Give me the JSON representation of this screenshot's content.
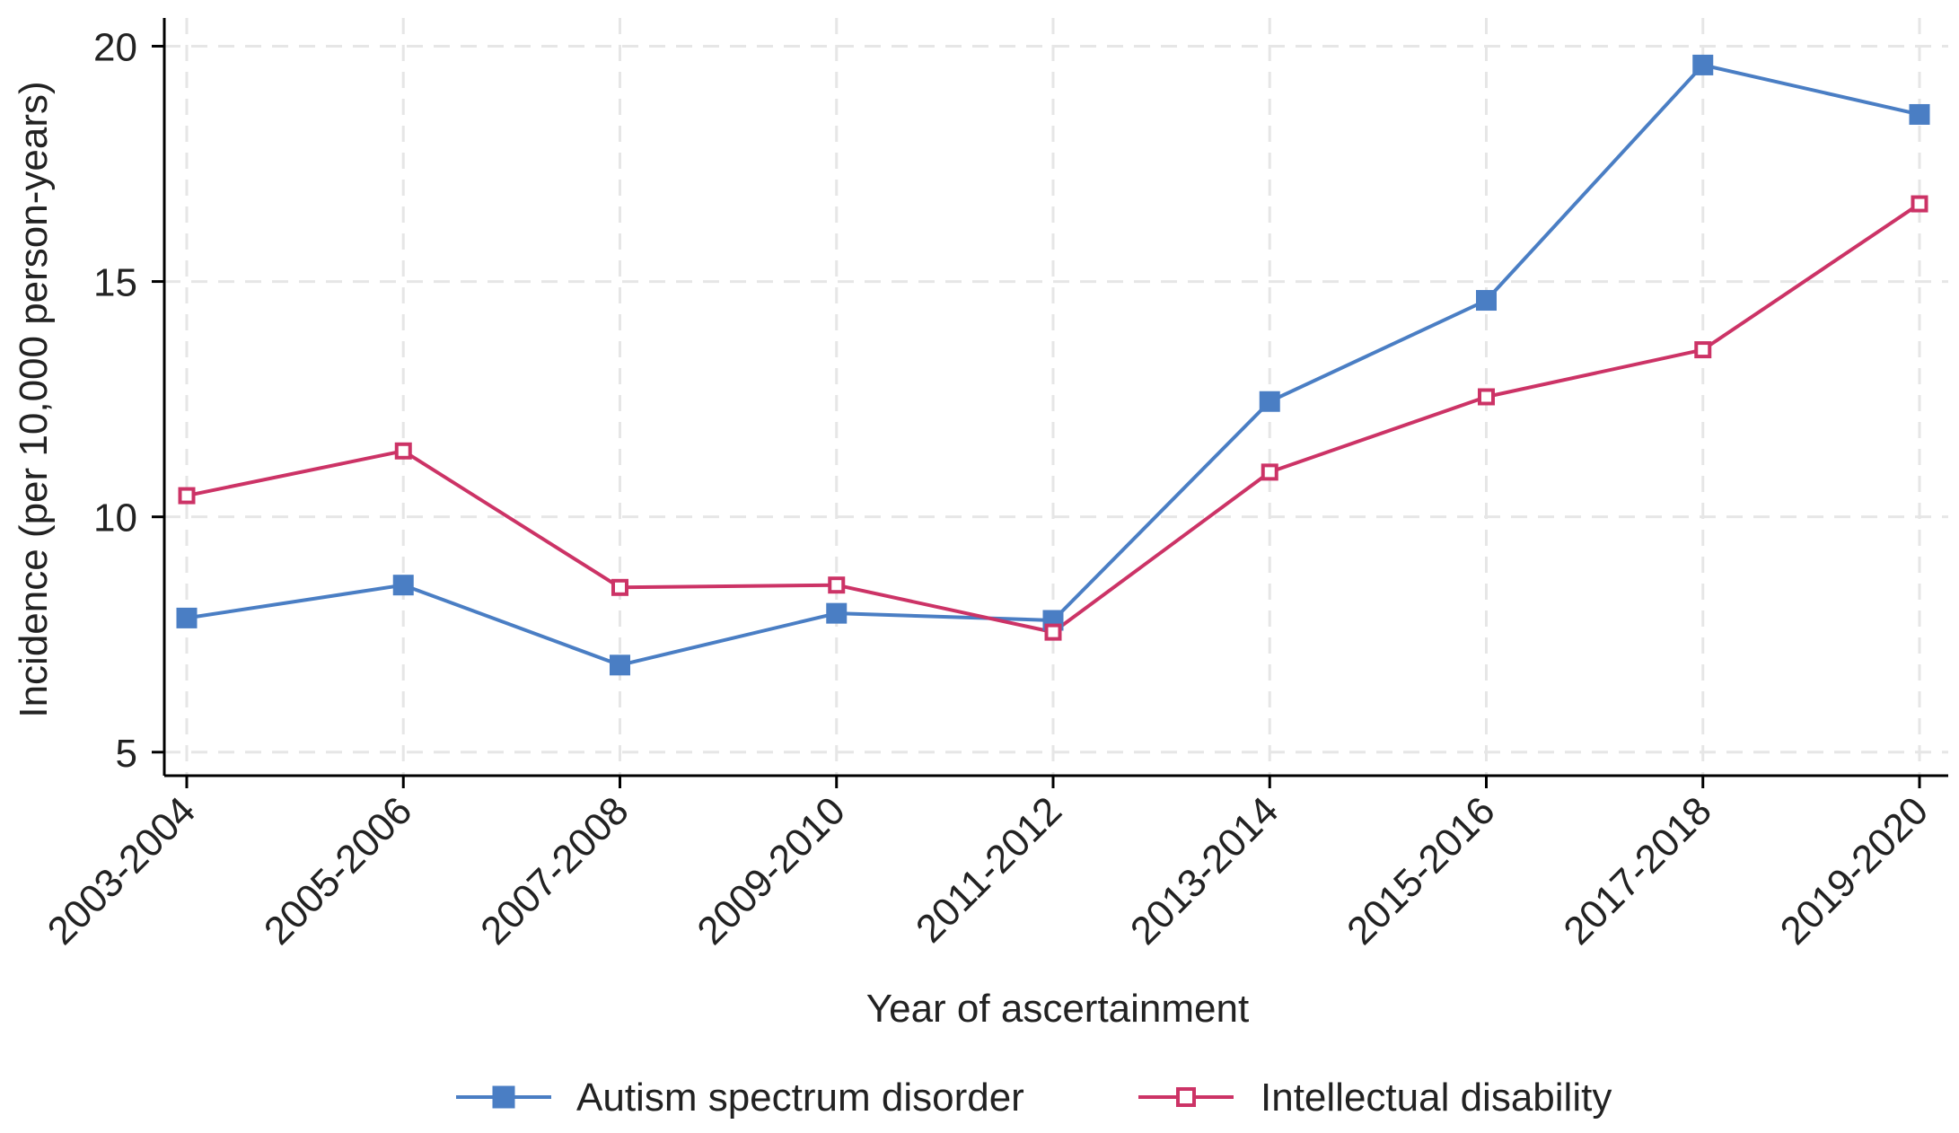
{
  "chart_data": {
    "type": "line",
    "title": "",
    "xlabel": "Year of ascertainment",
    "ylabel": "Incidence (per 10,000 person-years)",
    "categories": [
      "2003-2004",
      "2005-2006",
      "2007-2008",
      "2009-2010",
      "2011-2012",
      "2013-2014",
      "2015-2016",
      "2017-2018",
      "2019-2020"
    ],
    "y_ticks": [
      5,
      10,
      15,
      20
    ],
    "ylim": [
      4.5,
      20.6
    ],
    "grid": true,
    "legend_position": "bottom",
    "series": [
      {
        "name": "Autism spectrum disorder",
        "color": "#4a7ec4",
        "marker": "filled-square",
        "values": [
          7.85,
          8.55,
          6.85,
          7.95,
          7.8,
          12.45,
          14.6,
          19.6,
          18.55
        ]
      },
      {
        "name": "Intellectual disability",
        "color": "#cc3366",
        "marker": "hollow-square",
        "values": [
          10.45,
          11.4,
          8.5,
          8.55,
          7.55,
          10.95,
          12.55,
          13.55,
          16.65
        ]
      }
    ]
  }
}
